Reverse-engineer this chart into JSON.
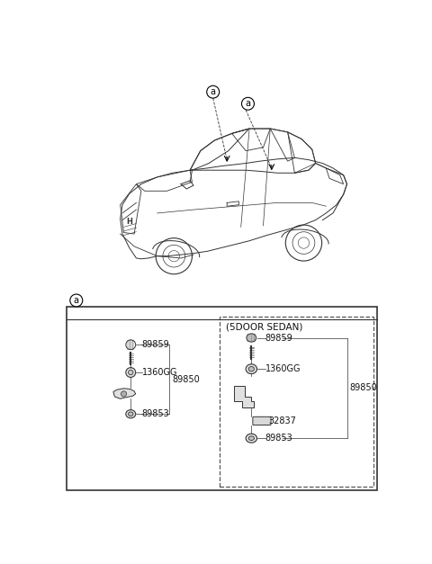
{
  "bg_color": "#ffffff",
  "callout_label": "a",
  "section_label": "a",
  "parts": {
    "left_group": {
      "label_89859": "89859",
      "label_1360GG": "1360GG",
      "label_89850": "89850",
      "label_89853": "89853"
    },
    "right_group": {
      "title": "(5DOOR SEDAN)",
      "label_89859": "89859",
      "label_1360GG": "1360GG",
      "label_89850": "89850",
      "label_32837": "32837",
      "label_89853": "89853"
    }
  },
  "line_color": "#333333",
  "font_size": 7.0
}
